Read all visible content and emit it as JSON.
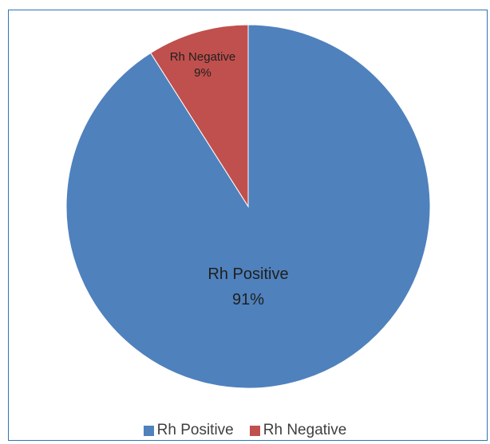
{
  "chart_data": {
    "type": "pie",
    "title": "",
    "categories": [
      "Rh Positive",
      "Rh Negative"
    ],
    "values": [
      91,
      9
    ],
    "data_labels": [
      {
        "name": "Rh Positive",
        "value": "91%"
      },
      {
        "name": "Rh Negative",
        "value": "9%"
      }
    ],
    "colors": [
      "#4f81bd",
      "#c0504d"
    ],
    "legend": {
      "position": "bottom",
      "entries": [
        "Rh Positive",
        "Rh Negative"
      ]
    }
  }
}
